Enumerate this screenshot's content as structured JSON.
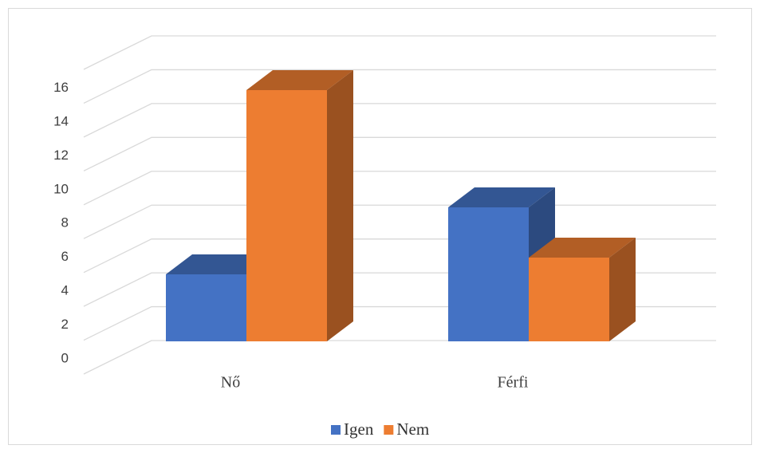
{
  "chart_data": {
    "type": "bar3d",
    "categories": [
      "Nő",
      "Férfi"
    ],
    "series": [
      {
        "name": "Igen",
        "color": "#4472c4",
        "values": [
          4,
          8
        ]
      },
      {
        "name": "Nem",
        "color": "#ed7d31",
        "values": [
          15,
          5
        ]
      }
    ],
    "ylim": [
      0,
      18
    ],
    "yticks": [
      0,
      2,
      4,
      6,
      8,
      10,
      12,
      14,
      16
    ],
    "grid": true,
    "legend": "bottom"
  }
}
